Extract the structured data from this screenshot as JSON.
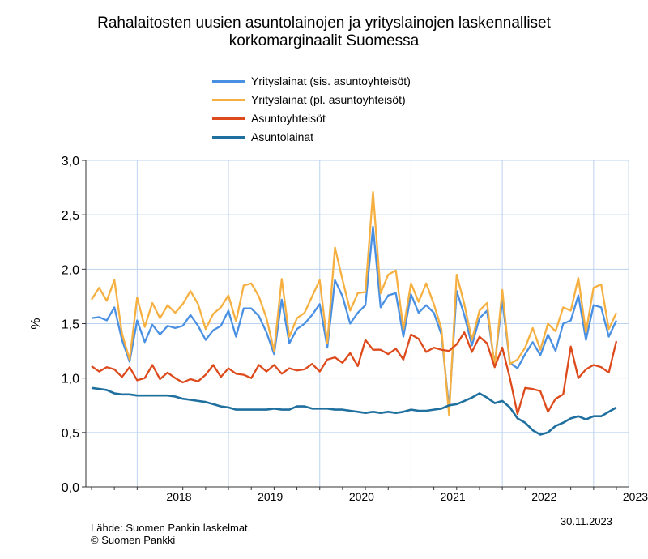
{
  "chart_data": {
    "type": "line",
    "title_line1": "Rahalaitosten uusien asuntolainojen ja yrityslainojen laskennalliset",
    "title_line2": "korkomarginaalit Suomessa",
    "ylabel": "%",
    "xlabel": "",
    "ylim": [
      0,
      3.0
    ],
    "yticks": [
      0,
      0.5,
      1.0,
      1.5,
      2.0,
      2.5,
      3.0
    ],
    "ytick_labels": [
      "0,0",
      "0,5",
      "1,0",
      "1,5",
      "2,0",
      "2,5",
      "3,0"
    ],
    "year_labels": [
      "2018",
      "2019",
      "2020",
      "2021",
      "2022",
      "2023"
    ],
    "x_start": "2017-07",
    "grid": true,
    "series": [
      {
        "name": "Yrityslainat (sis. asuntoyhteisöt)",
        "color": "#4a90e2",
        "values": [
          1.55,
          1.56,
          1.53,
          1.65,
          1.35,
          1.15,
          1.53,
          1.33,
          1.49,
          1.4,
          1.48,
          1.46,
          1.48,
          1.58,
          1.48,
          1.35,
          1.44,
          1.48,
          1.62,
          1.38,
          1.64,
          1.64,
          1.57,
          1.42,
          1.22,
          1.72,
          1.32,
          1.45,
          1.5,
          1.58,
          1.68,
          1.28,
          1.9,
          1.75,
          1.5,
          1.6,
          1.67,
          2.39,
          1.65,
          1.76,
          1.78,
          1.38,
          1.77,
          1.6,
          1.67,
          1.6,
          1.4,
          0.72,
          1.8,
          1.58,
          1.3,
          1.55,
          1.62,
          1.12,
          1.72,
          1.14,
          1.09,
          1.22,
          1.33,
          1.21,
          1.4,
          1.25,
          1.5,
          1.53,
          1.76,
          1.35,
          1.67,
          1.65,
          1.38,
          1.53
        ]
      },
      {
        "name": "Yrityslainat (pl. asuntoyhteisöt)",
        "color": "#f5b041",
        "values": [
          1.72,
          1.83,
          1.71,
          1.9,
          1.41,
          1.17,
          1.74,
          1.47,
          1.69,
          1.55,
          1.67,
          1.6,
          1.68,
          1.8,
          1.68,
          1.45,
          1.59,
          1.65,
          1.76,
          1.52,
          1.85,
          1.87,
          1.75,
          1.55,
          1.25,
          1.91,
          1.38,
          1.55,
          1.6,
          1.75,
          1.9,
          1.32,
          2.2,
          1.9,
          1.62,
          1.78,
          1.79,
          2.71,
          1.78,
          1.95,
          1.99,
          1.45,
          1.87,
          1.7,
          1.87,
          1.68,
          1.45,
          0.66,
          1.95,
          1.68,
          1.35,
          1.62,
          1.69,
          1.1,
          1.81,
          1.13,
          1.17,
          1.28,
          1.46,
          1.26,
          1.5,
          1.43,
          1.65,
          1.62,
          1.92,
          1.42,
          1.83,
          1.86,
          1.45,
          1.6
        ]
      },
      {
        "name": "Asuntoyhteisöt",
        "color": "#dd4a1c",
        "values": [
          1.11,
          1.06,
          1.1,
          1.08,
          1.01,
          1.1,
          0.98,
          1.0,
          1.12,
          0.99,
          1.05,
          1.0,
          0.96,
          0.99,
          0.97,
          1.03,
          1.12,
          1.01,
          1.09,
          1.04,
          1.03,
          1.0,
          1.12,
          1.06,
          1.12,
          1.04,
          1.09,
          1.07,
          1.08,
          1.13,
          1.06,
          1.17,
          1.19,
          1.14,
          1.23,
          1.11,
          1.35,
          1.26,
          1.26,
          1.22,
          1.27,
          1.17,
          1.4,
          1.36,
          1.24,
          1.28,
          1.26,
          1.25,
          1.31,
          1.42,
          1.24,
          1.38,
          1.32,
          1.1,
          1.28,
          1.0,
          0.67,
          0.91,
          0.9,
          0.88,
          0.69,
          0.81,
          0.85,
          1.29,
          1.0,
          1.08,
          1.12,
          1.1,
          1.05,
          1.34
        ]
      },
      {
        "name": "Asuntolainat",
        "color": "#1f6f9f",
        "values": [
          0.91,
          0.9,
          0.89,
          0.86,
          0.85,
          0.85,
          0.84,
          0.84,
          0.84,
          0.84,
          0.84,
          0.83,
          0.81,
          0.8,
          0.79,
          0.78,
          0.76,
          0.74,
          0.73,
          0.71,
          0.71,
          0.71,
          0.71,
          0.71,
          0.72,
          0.71,
          0.71,
          0.74,
          0.74,
          0.72,
          0.72,
          0.72,
          0.71,
          0.71,
          0.7,
          0.69,
          0.68,
          0.69,
          0.68,
          0.69,
          0.68,
          0.69,
          0.71,
          0.7,
          0.7,
          0.71,
          0.72,
          0.75,
          0.76,
          0.79,
          0.82,
          0.86,
          0.82,
          0.77,
          0.79,
          0.73,
          0.63,
          0.59,
          0.52,
          0.48,
          0.5,
          0.56,
          0.59,
          0.63,
          0.65,
          0.62,
          0.65,
          0.65,
          0.69,
          0.73
        ]
      }
    ]
  },
  "footer": {
    "source": "Lähde: Suomen Pankin laskelmat.",
    "copyright": "© Suomen Pankki",
    "date": "30.11.2023"
  }
}
